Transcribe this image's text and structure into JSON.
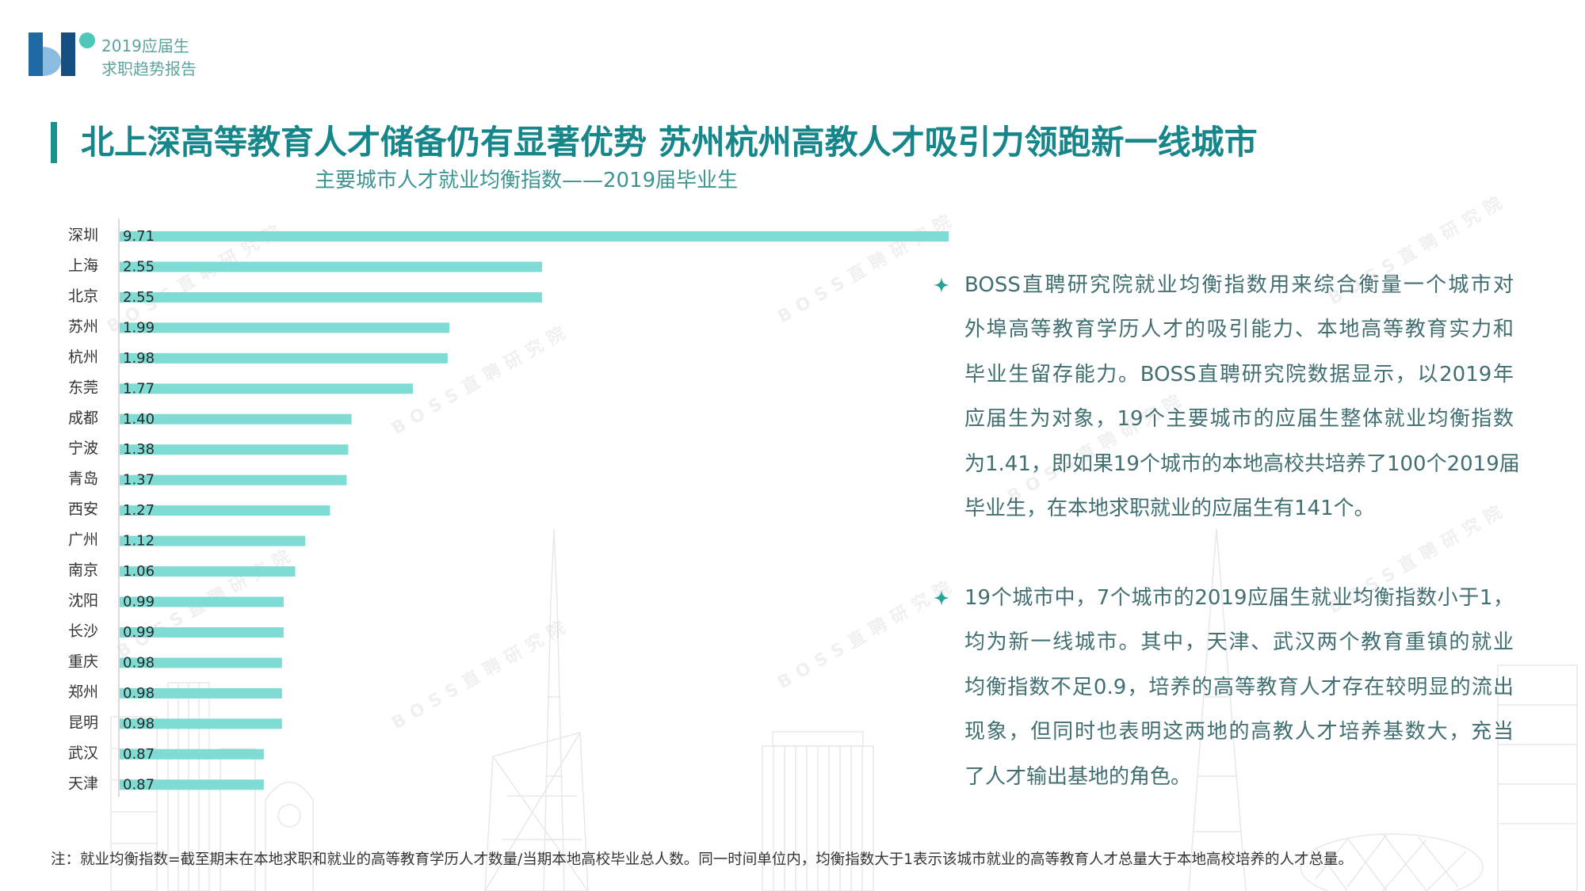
{
  "header": {
    "line1": "2019应届生",
    "line2": "求职趋势报告"
  },
  "title": "北上深高等教育人才储备仍有显著优势 苏州杭州高教人才吸引力领跑新一线城市",
  "watermark": "BOSS直聘研究院",
  "chart_data": {
    "type": "bar",
    "orientation": "horizontal",
    "title": "主要城市人才就业均衡指数——2019届毕业生",
    "categories": [
      "深圳",
      "上海",
      "北京",
      "苏州",
      "杭州",
      "东莞",
      "成都",
      "宁波",
      "青岛",
      "西安",
      "广州",
      "南京",
      "沈阳",
      "长沙",
      "重庆",
      "郑州",
      "昆明",
      "武汉",
      "天津"
    ],
    "values": [
      9.71,
      2.55,
      2.55,
      1.99,
      1.98,
      1.77,
      1.4,
      1.38,
      1.37,
      1.27,
      1.12,
      1.06,
      0.99,
      0.99,
      0.98,
      0.98,
      0.98,
      0.87,
      0.87
    ],
    "grid": false,
    "bar_color": "#7edcd4"
  },
  "bullets": [
    {
      "lines": [
        "BOSS直聘研究院就业均衡指数用来综合衡量一个城市对",
        "外埠高等教育学历人才的吸引能力、本地高等教育实力和",
        "毕业生留存能力。BOSS直聘研究院数据显示，以2019年",
        "应届生为对象，19个主要城市的应届生整体就业均衡指数",
        "为1.41，即如果19个城市的本地高校共培养了100个2019届",
        "毕业生，在本地求职就业的应届生有141个。"
      ]
    },
    {
      "lines": [
        "19个城市中，7个城市的2019应届生就业均衡指数小于1，",
        "均为新一线城市。其中，天津、武汉两个教育重镇的就业",
        "均衡指数不足0.9，培养的高等教育人才存在较明显的流出",
        "现象，但同时也表明这两地的高教人才培养基数大，充当",
        "了人才输出基地的角色。"
      ]
    }
  ],
  "note": "注：就业均衡指数=截至期末在本地求职和就业的高等教育学历人才数量/当期本地高校毕业总人数。同一时间单位内，均衡指数大于1表示该城市就业的高等教育人才总量大于本地高校培养的人才总量。",
  "colors": {
    "accent": "#17938c",
    "title": "#17868a",
    "body_text": "#426f72",
    "bullet_star": "#2aa198",
    "logo_blue_dark": "#154f80",
    "logo_blue": "#1f6aa5",
    "logo_blue_light": "#8cbbe0",
    "logo_dot": "#4ec6b8"
  },
  "icons": {
    "bullet": "four-point-star-icon"
  }
}
